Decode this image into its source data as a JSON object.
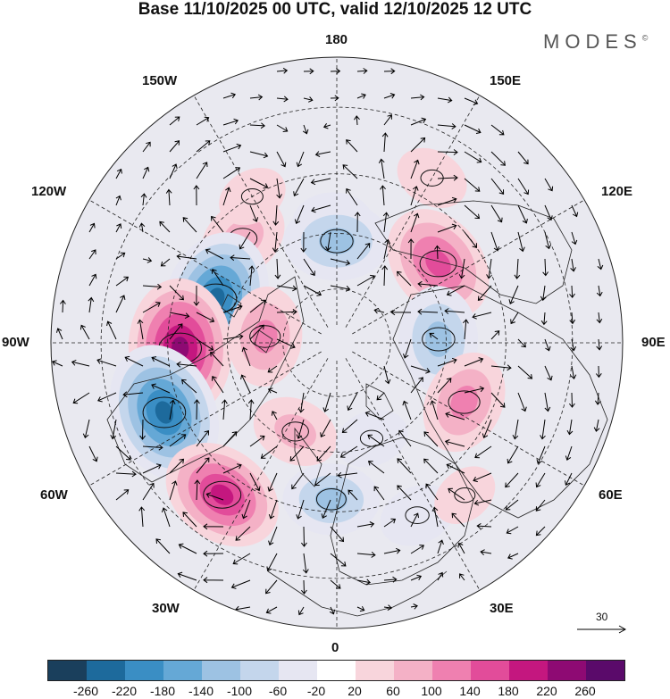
{
  "title": "Base 11/10/2025 00 UTC, valid 12/10/2025 12 UTC",
  "brand": "MODES",
  "brand_mark": "©",
  "map": {
    "projection": "north polar stereographic",
    "longitude_labels": {
      "top": "180",
      "bottom": "0",
      "left": "90W",
      "right": "90E",
      "upper_left_1": "150W",
      "upper_left_2": "120W",
      "lower_left_1": "60W",
      "lower_left_2": "30W",
      "upper_right_1": "150E",
      "upper_right_2": "120E",
      "lower_right_1": "60E",
      "lower_right_2": "30E"
    },
    "anomaly_centers": [
      {
        "lon": -178,
        "lat": 57,
        "value": -70
      },
      {
        "lon": -138,
        "lat": 52,
        "value": 110
      },
      {
        "lon": 180,
        "lat": 62,
        "value": -150
      },
      {
        "lon": 128,
        "lat": 55,
        "value": 190
      },
      {
        "lon": 92,
        "lat": 62,
        "value": -150
      },
      {
        "lon": 65,
        "lat": 52,
        "value": 140
      },
      {
        "lon": -110,
        "lat": 55,
        "value": -240
      },
      {
        "lon": -88,
        "lat": 48,
        "value": 250
      },
      {
        "lon": -68,
        "lat": 41,
        "value": -250
      },
      {
        "lon": -37,
        "lat": 40,
        "value": 200
      },
      {
        "lon": -2,
        "lat": 48,
        "value": -120
      },
      {
        "lon": 25,
        "lat": 40,
        "value": -60
      },
      {
        "lon": -25,
        "lat": 63,
        "value": 90
      },
      {
        "lon": -95,
        "lat": 70,
        "value": 130
      },
      {
        "lon": 40,
        "lat": 38,
        "value": 30
      },
      {
        "lon": 150,
        "lat": 40,
        "value": 50
      },
      {
        "lon": -150,
        "lat": 45,
        "value": 40
      },
      {
        "lon": 20,
        "lat": 62,
        "value": -50
      }
    ]
  },
  "colorbar": {
    "colors": [
      "#1a3f5c",
      "#1d6a9c",
      "#3a8ec4",
      "#65a8d6",
      "#9dc2e3",
      "#c4d6ec",
      "#e6e6f2",
      "#ffffff",
      "#f8d5dc",
      "#f4b1c6",
      "#ef80b0",
      "#e24c9a",
      "#c4177f",
      "#8e0a73",
      "#5a0a6a"
    ],
    "ticks": [
      "-260",
      "-220",
      "-180",
      "-140",
      "-100",
      "-60",
      "-20",
      "20",
      "60",
      "100",
      "140",
      "180",
      "220",
      "260"
    ]
  },
  "reference_vector": {
    "label": "30"
  }
}
